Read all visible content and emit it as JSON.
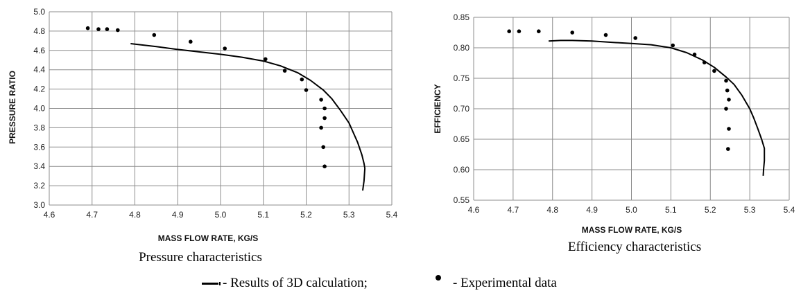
{
  "legend": {
    "line_label": "- Results of 3D calculation;",
    "dot_label": "- Experimental data"
  },
  "chart_data": [
    {
      "type": "line",
      "caption": "Pressure characteristics",
      "xlabel": "MASS FLOW RATE, KG/S",
      "ylabel": "PRESSURE RATIO",
      "xlim": [
        4.6,
        5.4
      ],
      "ylim": [
        3.0,
        5.0
      ],
      "x_ticks": [
        "4.6",
        "4.7",
        "4.8",
        "4.9",
        "5.0",
        "5.1",
        "5.2",
        "5.3",
        "5.4"
      ],
      "y_ticks": [
        "3.0",
        "3.2",
        "3.4",
        "3.6",
        "3.8",
        "4.0",
        "4.2",
        "4.4",
        "4.6",
        "4.8",
        "5.0"
      ],
      "grid": "both",
      "series": [
        {
          "kind": "line",
          "x": [
            4.79,
            4.85,
            4.9,
            4.95,
            5.0,
            5.05,
            5.1,
            5.14,
            5.18,
            5.21,
            5.24,
            5.26,
            5.28,
            5.3,
            5.31,
            5.32,
            5.33,
            5.335,
            5.337,
            5.335,
            5.332
          ],
          "y": [
            4.67,
            4.64,
            4.61,
            4.585,
            4.56,
            4.53,
            4.49,
            4.44,
            4.37,
            4.29,
            4.19,
            4.1,
            3.98,
            3.85,
            3.75,
            3.65,
            3.52,
            3.43,
            3.38,
            3.25,
            3.15
          ]
        },
        {
          "kind": "scatter",
          "x": [
            4.69,
            4.715,
            4.735,
            4.76,
            4.845,
            4.93,
            5.01,
            5.105,
            5.15,
            5.19,
            5.2,
            5.235,
            5.243,
            5.243,
            5.235,
            5.24,
            5.243
          ],
          "y": [
            4.83,
            4.82,
            4.82,
            4.81,
            4.76,
            4.69,
            4.62,
            4.51,
            4.39,
            4.3,
            4.19,
            4.09,
            4.0,
            3.9,
            3.8,
            3.6,
            3.4
          ]
        }
      ]
    },
    {
      "type": "line",
      "caption": "Efficiency characteristics",
      "xlabel": "MASS FLOW RATE, KG/S",
      "ylabel": "EFFICIENCY",
      "xlim": [
        4.6,
        5.4
      ],
      "ylim": [
        0.55,
        0.85
      ],
      "x_ticks": [
        "4.6",
        "4.7",
        "4.8",
        "4.9",
        "5.0",
        "5.1",
        "5.2",
        "5.3",
        "5.4"
      ],
      "y_ticks": [
        "0.55",
        "0.60",
        "0.65",
        "0.70",
        "0.75",
        "0.80",
        "0.85"
      ],
      "grid": "both",
      "series": [
        {
          "kind": "line",
          "x": [
            4.79,
            4.82,
            4.85,
            4.9,
            4.95,
            5.0,
            5.05,
            5.1,
            5.14,
            5.18,
            5.21,
            5.24,
            5.26,
            5.28,
            5.3,
            5.31,
            5.32,
            5.33,
            5.337,
            5.337,
            5.335,
            5.334
          ],
          "y": [
            0.811,
            0.812,
            0.812,
            0.811,
            0.809,
            0.807,
            0.805,
            0.8,
            0.792,
            0.78,
            0.768,
            0.752,
            0.74,
            0.722,
            0.7,
            0.685,
            0.668,
            0.65,
            0.635,
            0.615,
            0.6,
            0.59
          ]
        },
        {
          "kind": "scatter",
          "x": [
            4.69,
            4.715,
            4.765,
            4.85,
            4.935,
            5.01,
            5.105,
            5.16,
            5.185,
            5.21,
            5.24,
            5.243,
            5.247,
            5.24,
            5.247,
            5.245
          ],
          "y": [
            0.827,
            0.827,
            0.827,
            0.825,
            0.821,
            0.816,
            0.804,
            0.789,
            0.776,
            0.762,
            0.746,
            0.73,
            0.715,
            0.7,
            0.667,
            0.634
          ]
        }
      ]
    }
  ]
}
